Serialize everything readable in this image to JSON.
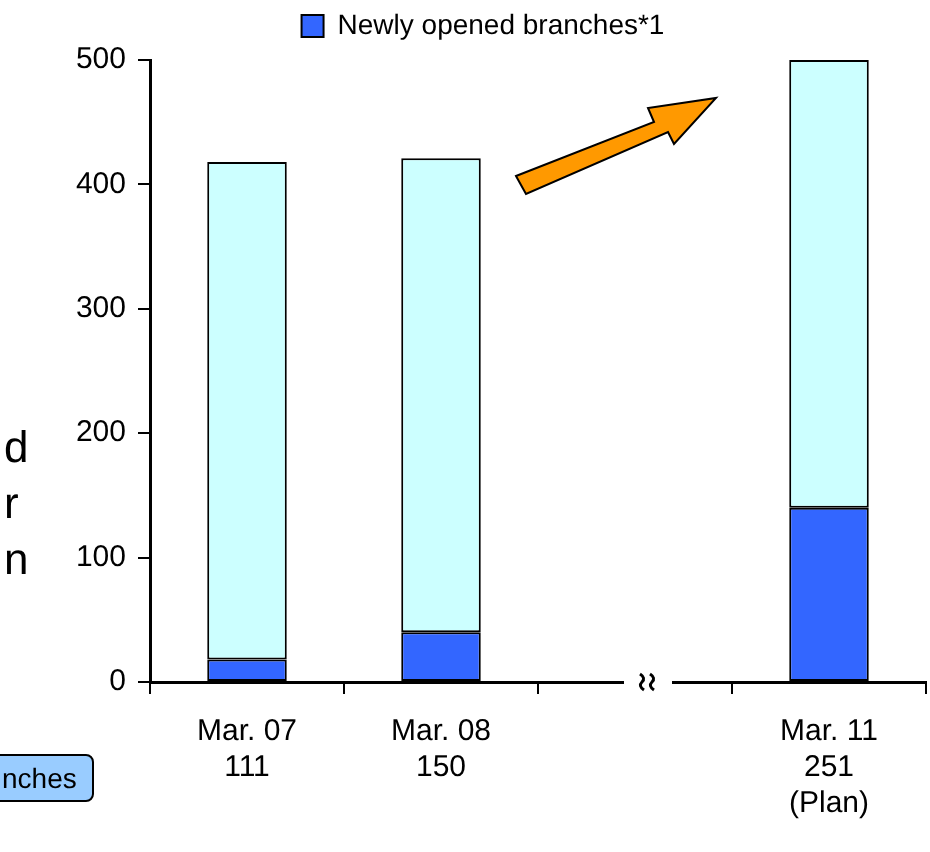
{
  "chart_data": {
    "type": "bar",
    "stacked": true,
    "categories": [
      "Mar. 07\n111",
      "Mar. 08\n150",
      null,
      "Mar. 11\n251\n(Plan)"
    ],
    "series": [
      {
        "name": "Newly opened branches*1",
        "color": "#3366ff",
        "values": [
          18,
          40,
          null,
          140
        ]
      },
      {
        "color": "#ccffff",
        "values": [
          400,
          381,
          null,
          360
        ]
      }
    ],
    "ylim": [
      0,
      500
    ],
    "yticks": [
      0,
      100,
      200,
      300,
      400,
      500
    ],
    "grid": false,
    "legend": "top",
    "annotations": [
      "d\nr\nn",
      "nches"
    ]
  }
}
